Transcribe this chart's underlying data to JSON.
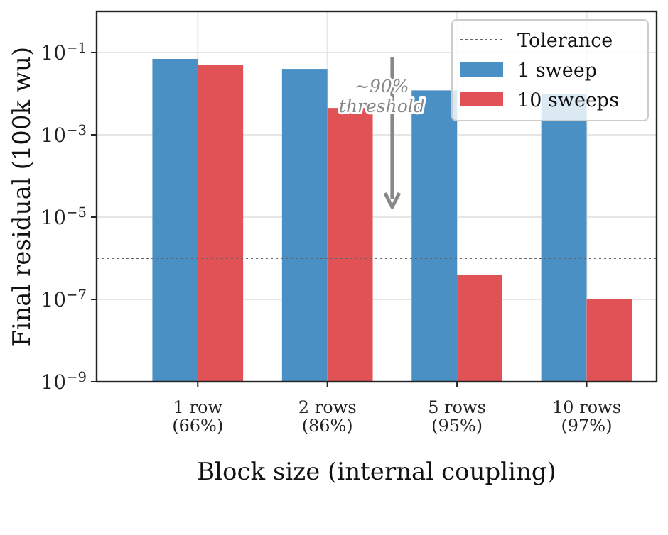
{
  "chart_data": {
    "type": "bar",
    "xlabel": "Block size (internal coupling)",
    "ylabel": "Final residual (100k wu)",
    "categories": [
      "1 row\n(66%)",
      "2 rows\n(86%)",
      "5 rows\n(95%)",
      "10 rows\n(97%)"
    ],
    "series": [
      {
        "name": "1 sweep",
        "color": "#4a90c4",
        "values": [
          0.07,
          0.04,
          0.012,
          0.01
        ]
      },
      {
        "name": "10 sweeps",
        "color": "#e05255",
        "values": [
          0.05,
          0.0045,
          4e-07,
          1e-07
        ]
      }
    ],
    "log": true,
    "ylim": [
      1e-09,
      1
    ],
    "yticks": [
      {
        "value": 1e-09,
        "label": "10$^{−9}$"
      },
      {
        "value": 1e-07,
        "label": "10$^{−7}$"
      },
      {
        "value": 1e-05,
        "label": "10$^{−5}$"
      },
      {
        "value": 0.001,
        "label": "10$^{−3}$"
      },
      {
        "value": 0.1,
        "label": "10$^{−1}$"
      }
    ],
    "ref_lines": [
      {
        "axis": "y",
        "value": 1e-06,
        "label": "Tolerance",
        "color": "#666666",
        "line_style": "dotted"
      }
    ],
    "annotations": [
      "~90% threshold"
    ],
    "grid": true,
    "legend": "top right"
  }
}
